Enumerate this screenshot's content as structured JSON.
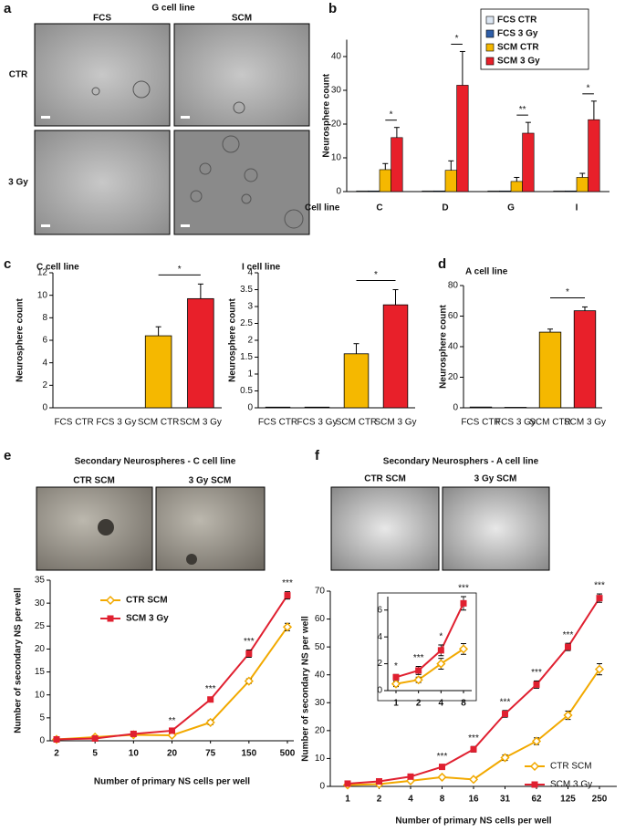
{
  "panel_labels": [
    "a",
    "b",
    "c",
    "d",
    "e",
    "f"
  ],
  "panel_a": {
    "title": "G cell line",
    "columns": [
      "FCS",
      "SCM"
    ],
    "rows": [
      "CTR",
      "3 Gy"
    ]
  },
  "chart_data": [
    {
      "type": "bar",
      "categories": [
        "C",
        "D",
        "G",
        "I"
      ],
      "x_label": "Cell line",
      "y_label": "Neurosphere count",
      "ylim": [
        0,
        45
      ],
      "yticks": [
        0,
        10,
        20,
        30,
        40
      ],
      "legend_position": "top-right",
      "annotations": [
        "*",
        "*",
        "**",
        "*"
      ],
      "series": [
        {
          "name": "FCS CTR",
          "color": "#dce6f2",
          "values": [
            0.2,
            0.2,
            0.2,
            0.2
          ]
        },
        {
          "name": "FCS 3 Gy",
          "color": "#2e5ea8",
          "values": [
            0.2,
            0.2,
            0.2,
            0.2
          ]
        },
        {
          "name": "SCM CTR",
          "color": "#f5b800",
          "values": [
            6.5,
            6.3,
            3,
            4.2
          ],
          "errors": [
            1.8,
            2.8,
            1.2,
            1.2
          ]
        },
        {
          "name": "SCM 3 Gy",
          "color": "#e8202a",
          "values": [
            16,
            31.5,
            17.3,
            21.3
          ],
          "errors": [
            3,
            10,
            3.2,
            5.5
          ]
        }
      ]
    },
    {
      "type": "bar",
      "title": "C cell line",
      "categories": [
        "FCS CTR",
        "FCS 3 Gy",
        "SCM CTR",
        "SCM 3 Gy"
      ],
      "y_label": "Neurosphere count",
      "values": [
        0,
        0,
        6.4,
        9.7
      ],
      "errors": [
        null,
        null,
        0.8,
        1.3
      ],
      "colors": [
        "#dce6f2",
        "#2e5ea8",
        "#f5b800",
        "#e8202a"
      ],
      "ylim": [
        0,
        12
      ],
      "yticks": [
        0,
        2,
        4,
        6,
        8,
        10,
        12
      ],
      "annotation": "*"
    },
    {
      "type": "bar",
      "title": "I cell line",
      "categories": [
        "FCS CTR",
        "FCS 3 Gy",
        "SCM CTR",
        "SCM 3 Gy"
      ],
      "y_label": "Neurosphere count",
      "values": [
        0.02,
        0.02,
        1.6,
        3.05
      ],
      "errors": [
        null,
        null,
        0.3,
        0.45
      ],
      "colors": [
        "#dce6f2",
        "#2e5ea8",
        "#f5b800",
        "#e8202a"
      ],
      "ylim": [
        0,
        4
      ],
      "yticks": [
        0,
        0.5,
        1,
        1.5,
        2,
        2.5,
        3,
        3.5,
        4
      ],
      "annotation": "*"
    },
    {
      "type": "bar",
      "title": "A cell line",
      "categories": [
        "FCS CTR",
        "FCS 3 Gy",
        "SCM CTR",
        "SCM 3 Gy"
      ],
      "y_label": "Neurosphere count",
      "values": [
        0.5,
        0.3,
        49.5,
        63.5
      ],
      "errors": [
        null,
        null,
        2,
        2.5
      ],
      "colors": [
        "#dce6f2",
        "#2e5ea8",
        "#f5b800",
        "#e8202a"
      ],
      "ylim": [
        0,
        80
      ],
      "yticks": [
        0,
        20,
        40,
        60,
        80
      ],
      "annotation": "*"
    },
    {
      "type": "line",
      "title": "Secondary Neurospheres - C cell line",
      "image_labels": [
        "CTR SCM",
        "3 Gy SCM"
      ],
      "categories": [
        "2",
        "5",
        "10",
        "20",
        "75",
        "150",
        "500"
      ],
      "x_label": "Number of primary NS cells per well",
      "y_label": "Number of secondary NS per well",
      "ylim": [
        0,
        35
      ],
      "yticks": [
        0,
        5,
        10,
        15,
        20,
        25,
        30,
        35
      ],
      "legend_position": "top-left",
      "annotations": [
        null,
        null,
        null,
        "**",
        "***",
        "***",
        "***"
      ],
      "series": [
        {
          "name": "CTR SCM",
          "color": "#f2a900",
          "marker": "diamond",
          "values": [
            0.3,
            0.8,
            1.3,
            1.2,
            4,
            13,
            24.8
          ],
          "errors": [
            0.2,
            0.3,
            0.3,
            0.3,
            0.5,
            0.5,
            0.8
          ]
        },
        {
          "name": "SCM 3 Gy",
          "color": "#e02030",
          "marker": "square",
          "values": [
            0.3,
            0.5,
            1.5,
            2.2,
            9,
            19,
            31.7
          ],
          "errors": [
            0.2,
            0.2,
            0.3,
            0.3,
            0.5,
            0.8,
            0.8
          ]
        }
      ]
    },
    {
      "type": "line",
      "title": "Secondary Neurosphers - A cell line",
      "image_labels": [
        "CTR SCM",
        "3 Gy SCM"
      ],
      "categories": [
        "1",
        "2",
        "4",
        "8",
        "16",
        "31",
        "62",
        "125",
        "250"
      ],
      "x_label": "Number of primary NS cells per well",
      "y_label": "Number of secondary NS per well",
      "ylim": [
        0,
        70
      ],
      "yticks": [
        0,
        10,
        20,
        30,
        40,
        50,
        60,
        70
      ],
      "legend_position": "bottom-right",
      "annotations": [
        null,
        null,
        null,
        "***",
        "***",
        "***",
        "***",
        "***",
        "***"
      ],
      "series": [
        {
          "name": "CTR SCM",
          "color": "#f2a900",
          "marker": "diamond",
          "values": [
            0.5,
            0.8,
            2,
            3.3,
            2.5,
            10.3,
            16.2,
            25.5,
            42
          ],
          "errors": [
            0.2,
            0.3,
            0.5,
            0.5,
            0.5,
            1,
            1.2,
            1.5,
            2
          ]
        },
        {
          "name": "SCM 3 Gy",
          "color": "#e02030",
          "marker": "square",
          "values": [
            1,
            1.8,
            3.5,
            7,
            13.3,
            26,
            36.5,
            50,
            67.5
          ],
          "errors": [
            0.3,
            0.4,
            0.5,
            0.7,
            1,
            1.2,
            1.3,
            1.3,
            1.5
          ]
        }
      ]
    },
    {
      "type": "line",
      "categories": [
        "1",
        "2",
        "4",
        "8"
      ],
      "ylim": [
        0,
        7
      ],
      "yticks": [
        0,
        2,
        4,
        6
      ],
      "annotations": [
        "*",
        "***",
        "*",
        "***"
      ],
      "series": [
        {
          "color": "#f2a900",
          "marker": "diamond",
          "values": [
            0.5,
            0.8,
            2,
            3.1
          ],
          "errors": [
            0.2,
            0.2,
            0.4,
            0.4
          ]
        },
        {
          "color": "#e02030",
          "marker": "square",
          "values": [
            1,
            1.5,
            3,
            6.5
          ],
          "errors": [
            0.2,
            0.3,
            0.4,
            0.5
          ]
        }
      ]
    }
  ]
}
